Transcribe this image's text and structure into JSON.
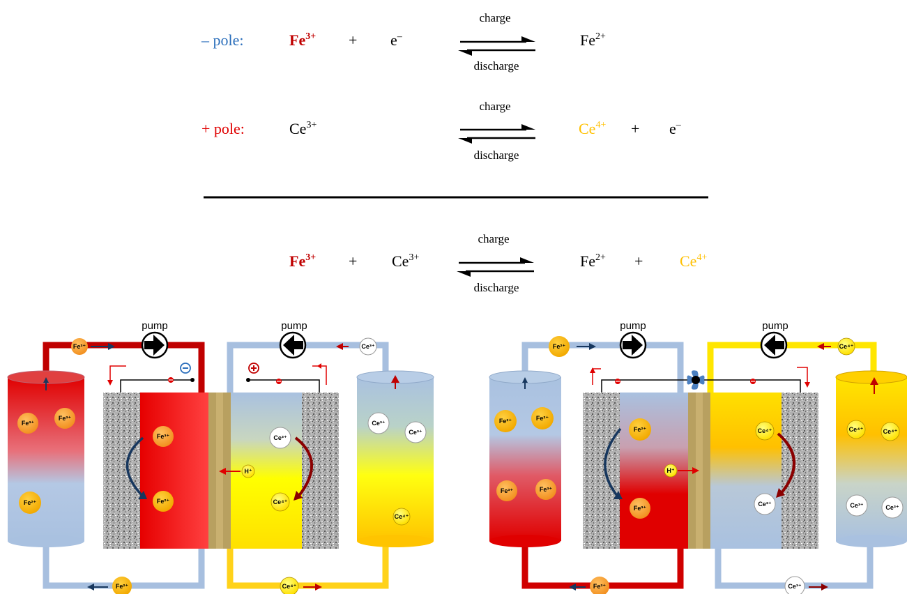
{
  "equations": {
    "neg": {
      "pole": "– pole:",
      "a": "Fe",
      "a_sup": "3+",
      "plus": "+",
      "b": "e",
      "b_sup": "–",
      "c": "Fe",
      "c_sup": "2+"
    },
    "pos": {
      "pole": "+ pole:",
      "a": "Ce",
      "a_sup": "3+",
      "c": "Ce",
      "c_sup": "4+",
      "plus": "+",
      "d": "e",
      "d_sup": "–"
    },
    "total": {
      "a": "Fe",
      "a_sup": "3+",
      "plus1": "+",
      "b": "Ce",
      "b_sup": "3+",
      "c": "Fe",
      "c_sup": "2+",
      "plus2": "+",
      "d": "Ce",
      "d_sup": "4+"
    },
    "charge": "charge",
    "discharge": "discharge"
  },
  "left": {
    "pump1": "pump",
    "pump2": "pump",
    "fe3": "Fe³⁺",
    "fe2": "Fe²⁺",
    "ce3": "Ce³⁺",
    "ce4": "Ce⁴⁺",
    "h": "H⁺"
  },
  "right": {
    "pump1": "pump",
    "pump2": "pump",
    "fe3": "Fe³⁺",
    "fe2": "Fe²⁺",
    "ce3": "Ce³⁺",
    "ce4": "Ce⁴⁺",
    "h": "H⁺"
  },
  "colors": {
    "red": "#e00000",
    "blue": "#2a6ebb",
    "gold": "#f5b400",
    "pipe_blue": "#a7bfdf",
    "pipe_red": "#c00000",
    "pipe_yellow": "#ffe000",
    "membrane": "#b8a060",
    "dark_arrow": "#17375e"
  }
}
